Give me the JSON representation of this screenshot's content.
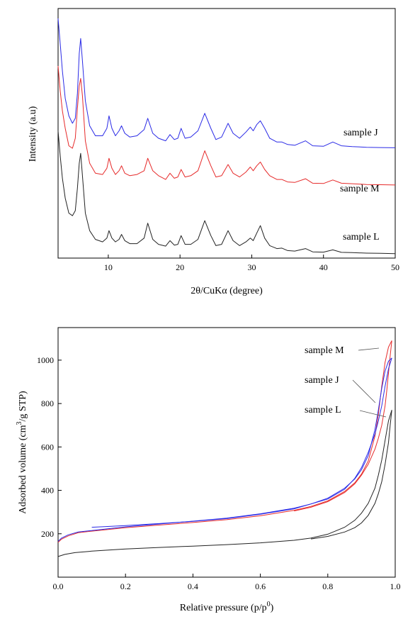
{
  "chart_data": [
    {
      "type": "line",
      "xlabel": "2θ/CuKα (degree)",
      "ylabel": "Intensity (a.u)",
      "xlim": [
        3,
        50
      ],
      "ylim": [
        0,
        100
      ],
      "xticks": [
        "10",
        "20",
        "30",
        "40",
        "50"
      ],
      "grid": false,
      "series": [
        {
          "name": "sample J",
          "color": "#2a2ae6",
          "x": [
            3,
            3.3,
            3.6,
            4,
            4.5,
            5,
            5.4,
            5.7,
            5.95,
            6.15,
            6.4,
            6.8,
            7.4,
            8.2,
            9.2,
            9.8,
            10.1,
            10.5,
            11,
            11.5,
            11.85,
            12.3,
            13,
            14,
            15,
            15.5,
            16.2,
            17,
            18,
            18.6,
            19.2,
            19.7,
            20.15,
            20.7,
            21.5,
            22.5,
            23.45,
            24.3,
            25,
            25.8,
            26.7,
            27.4,
            28.3,
            29.2,
            29.8,
            30.2,
            30.7,
            31.2,
            31.8,
            32.5,
            33.5,
            34.2,
            35,
            36,
            37.5,
            38.5,
            40,
            41.3,
            42.5,
            44,
            46,
            48,
            50
          ],
          "y": [
            96,
            86,
            75,
            64,
            57,
            54,
            56,
            66,
            82,
            88,
            79,
            63,
            53,
            49,
            49,
            52,
            57,
            52,
            49,
            51,
            53,
            50,
            48.5,
            49,
            51.5,
            56,
            50,
            48,
            47,
            49.5,
            47.5,
            48,
            52,
            48,
            48.5,
            51,
            58,
            52,
            47.5,
            48.5,
            54,
            50,
            48,
            50.5,
            52.5,
            51,
            53.5,
            55,
            52,
            48,
            46.5,
            46.5,
            45.5,
            45.2,
            47,
            45,
            44.8,
            46.5,
            45,
            44.7,
            44.4,
            44.3,
            44.2
          ]
        },
        {
          "name": "sample M",
          "color": "#e62a2a",
          "x": [
            3,
            3.3,
            3.6,
            4,
            4.5,
            5,
            5.4,
            5.7,
            5.95,
            6.15,
            6.4,
            6.8,
            7.4,
            8.2,
            9.2,
            9.8,
            10.1,
            10.5,
            11,
            11.5,
            11.85,
            12.3,
            13,
            14,
            15,
            15.5,
            16.2,
            17,
            18,
            18.6,
            19.2,
            19.7,
            20.15,
            20.7,
            21.5,
            22.5,
            23.45,
            24.3,
            25,
            25.8,
            26.7,
            27.4,
            28.3,
            29.2,
            29.8,
            30.2,
            30.7,
            31.2,
            31.8,
            32.5,
            33.5,
            34.2,
            35,
            36,
            37.5,
            38.5,
            40,
            41.3,
            42.5,
            44,
            46,
            48,
            50
          ],
          "y": [
            77,
            67,
            59,
            52,
            45,
            44,
            48,
            60,
            69,
            72,
            65,
            47,
            38,
            34,
            33.5,
            36,
            40,
            36,
            33.5,
            35,
            37,
            34,
            33,
            33.5,
            35,
            40,
            35,
            33,
            31.5,
            34,
            32,
            32.5,
            35.5,
            32.5,
            33,
            35,
            43,
            37,
            32.5,
            33,
            37.5,
            34,
            32.5,
            34.5,
            36.5,
            35,
            37,
            38.5,
            35.5,
            33,
            31.5,
            31.5,
            30.5,
            30.3,
            31.8,
            30,
            29.9,
            31.3,
            30,
            29.8,
            29.5,
            29.4,
            29.3
          ]
        },
        {
          "name": "sample L",
          "color": "#222222",
          "x": [
            3,
            3.3,
            3.6,
            4,
            4.5,
            5,
            5.4,
            5.7,
            5.95,
            6.15,
            6.4,
            6.8,
            7.4,
            8.2,
            9.2,
            9.8,
            10.1,
            10.5,
            11,
            11.5,
            11.85,
            12.3,
            13,
            14,
            15,
            15.5,
            16.2,
            17,
            18,
            18.6,
            19.2,
            19.7,
            20.15,
            20.7,
            21.5,
            22.5,
            23.45,
            24.3,
            25,
            25.8,
            26.7,
            27.4,
            28.3,
            29.2,
            29.8,
            30.2,
            30.7,
            31.2,
            31.8,
            32.5,
            33.5,
            34.2,
            35,
            36,
            37.5,
            38.5,
            40,
            41.3,
            42.5,
            44,
            46,
            48,
            50
          ],
          "y": [
            51,
            41,
            32,
            24,
            18,
            17,
            19,
            28,
            38,
            42,
            33,
            18,
            11,
            7.5,
            6.5,
            8,
            11,
            8,
            6.5,
            7.5,
            9.5,
            7,
            5.8,
            5.8,
            8,
            14,
            7.5,
            5.5,
            4.8,
            7,
            5.2,
            5.5,
            9,
            5.5,
            5.5,
            7.5,
            15,
            9,
            5,
            5.5,
            11,
            7,
            5,
            6.5,
            8,
            7,
            10,
            13,
            8,
            5,
            3.8,
            4,
            3,
            2.8,
            3.8,
            2.5,
            2.4,
            3.3,
            2.3,
            2.2,
            2,
            1.9,
            1.8
          ]
        }
      ],
      "annotations": [
        "sample J",
        "sample M",
        "sample L"
      ]
    },
    {
      "type": "line",
      "xlabel": "Relative pressure (p/p",
      "xlabel_sup": "0",
      "xlabel_end": ")",
      "ylabel": "Adsorbed volume (cm",
      "ylabel_sup": "3",
      "ylabel_end": "/g STP)",
      "xlim": [
        0,
        1
      ],
      "ylim": [
        0,
        1150
      ],
      "xticks": [
        "0.0",
        "0.2",
        "0.4",
        "0.6",
        "0.8",
        "1.0"
      ],
      "yticks": [
        "200",
        "400",
        "600",
        "800",
        "1000"
      ],
      "grid": false,
      "series": [
        {
          "name": "sample M",
          "color": "#e62a2a",
          "x": [
            0.0,
            0.01,
            0.03,
            0.06,
            0.1,
            0.2,
            0.3,
            0.4,
            0.5,
            0.6,
            0.7,
            0.75,
            0.8,
            0.85,
            0.88,
            0.9,
            0.92,
            0.94,
            0.95,
            0.96,
            0.97,
            0.98,
            0.99
          ],
          "y": [
            160,
            175,
            190,
            205,
            212,
            228,
            240,
            252,
            265,
            283,
            308,
            326,
            352,
            395,
            435,
            475,
            535,
            650,
            750,
            880,
            990,
            1060,
            1090
          ],
          "x2": [
            0.99,
            0.985,
            0.98,
            0.975,
            0.97,
            0.96,
            0.95,
            0.94,
            0.92,
            0.9,
            0.88,
            0.85,
            0.8,
            0.75,
            0.7
          ],
          "y2": [
            1090,
            1020,
            940,
            860,
            790,
            700,
            640,
            590,
            520,
            470,
            430,
            390,
            348,
            322,
            305
          ]
        },
        {
          "name": "sample J",
          "color": "#2a2ae6",
          "x": [
            0.0,
            0.01,
            0.03,
            0.06,
            0.1,
            0.2,
            0.3,
            0.4,
            0.5,
            0.6,
            0.7,
            0.75,
            0.8,
            0.85,
            0.88,
            0.9,
            0.92,
            0.94,
            0.95,
            0.96,
            0.97,
            0.98,
            0.99
          ],
          "y": [
            165,
            180,
            195,
            208,
            215,
            232,
            245,
            258,
            272,
            292,
            318,
            337,
            364,
            410,
            452,
            495,
            560,
            680,
            770,
            870,
            950,
            995,
            1010
          ],
          "x2": [
            0.99,
            0.98,
            0.97,
            0.96,
            0.95,
            0.94,
            0.92,
            0.9,
            0.88,
            0.85,
            0.8,
            0.7,
            0.6,
            0.5,
            0.4,
            0.3,
            0.2,
            0.1
          ],
          "y2": [
            1010,
            960,
            880,
            790,
            720,
            660,
            575,
            505,
            455,
            405,
            360,
            315,
            290,
            270,
            257,
            247,
            238,
            230
          ]
        },
        {
          "name": "sample L",
          "color": "#222222",
          "x": [
            0.0,
            0.02,
            0.05,
            0.1,
            0.2,
            0.3,
            0.4,
            0.5,
            0.6,
            0.7,
            0.75,
            0.8,
            0.85,
            0.88,
            0.9,
            0.92,
            0.94,
            0.95,
            0.96,
            0.97,
            0.98,
            0.99
          ],
          "y": [
            95,
            105,
            113,
            120,
            130,
            137,
            143,
            150,
            158,
            170,
            180,
            198,
            230,
            262,
            295,
            340,
            410,
            470,
            540,
            630,
            720,
            770
          ],
          "x2": [
            0.99,
            0.985,
            0.98,
            0.97,
            0.96,
            0.95,
            0.94,
            0.92,
            0.9,
            0.88,
            0.85,
            0.8,
            0.75
          ],
          "y2": [
            770,
            700,
            620,
            520,
            440,
            385,
            340,
            285,
            250,
            228,
            208,
            188,
            176
          ]
        }
      ],
      "annotations": [
        "sample M",
        "sample J",
        "sample L"
      ]
    }
  ]
}
